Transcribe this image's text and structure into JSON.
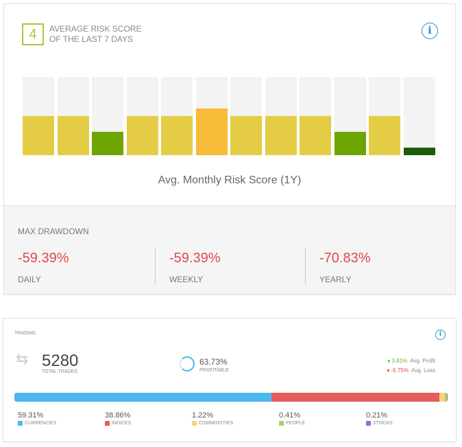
{
  "risk": {
    "score": "4",
    "title_line1": "AVERAGE RISK SCORE",
    "title_line2": "OF THE LAST 7 DAYS",
    "info_icon": "i"
  },
  "chart_data": {
    "type": "bar",
    "title": "Avg. Monthly Risk Score (1Y)",
    "ylim": [
      0,
      10
    ],
    "values": [
      5,
      5,
      3,
      5,
      5,
      6,
      5,
      5,
      5,
      3,
      5,
      1
    ],
    "colors": {
      "1": "#1f5c0a",
      "3": "#6ea500",
      "5": "#e5cc45",
      "6": "#f8bb3a"
    }
  },
  "drawdown": {
    "title": "MAX DRAWDOWN",
    "items": [
      {
        "value": "-59.39%",
        "label": "DAILY"
      },
      {
        "value": "-59.39%",
        "label": "WEEKLY"
      },
      {
        "value": "-70.83%",
        "label": "YEARLY"
      }
    ]
  },
  "trading": {
    "title": "TRADING",
    "info_icon": "i",
    "total": "5280",
    "total_label": "TOTAL TRADES",
    "profitable": "63.73%",
    "profitable_label": "PROFITABLE",
    "avg_profit": "3.81%",
    "avg_profit_label": "Avg. Profit",
    "avg_loss": "-5.75%",
    "avg_loss_label": "Avg. Loss",
    "breakdown": [
      {
        "pct": 59.31,
        "value": "59.31%",
        "label": "CURRENCIES",
        "color": "#4cb8f0"
      },
      {
        "pct": 38.86,
        "value": "38.86%",
        "label": "INDICES",
        "color": "#e85b5b"
      },
      {
        "pct": 1.22,
        "value": "1.22%",
        "label": "COMMODITIES",
        "color": "#f9d47a"
      },
      {
        "pct": 0.41,
        "value": "0.41%",
        "label": "PEOPLE",
        "color": "#a5d46a"
      },
      {
        "pct": 0.21,
        "value": "0.21%",
        "label": "STOCKS",
        "color": "#9b6ac0"
      }
    ]
  }
}
